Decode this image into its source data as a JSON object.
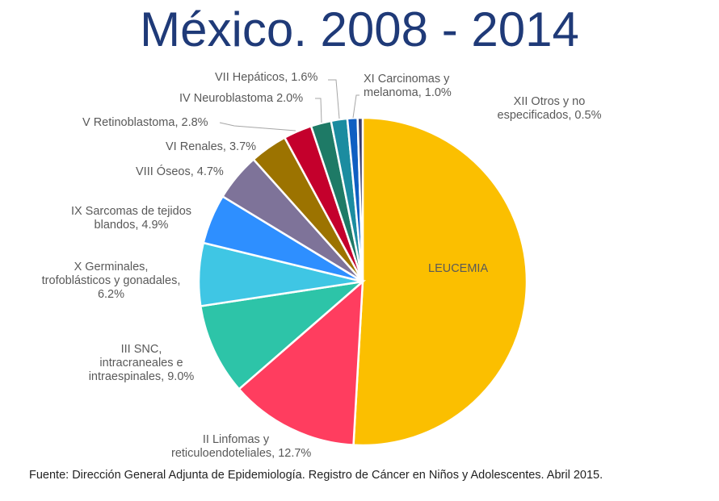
{
  "chart_data": {
    "type": "pie",
    "title": "México. 2008 - 2014",
    "start": "top",
    "direction": "clockwise",
    "slices": [
      {
        "label": "LEUCEMIA",
        "value": 50.9,
        "color": "#FBBF00"
      },
      {
        "label": "II Linfomas y reticuloendoteliales, 12.7%",
        "value": 12.7,
        "color": "#FF3D5F"
      },
      {
        "label": "III SNC, intracraneales e intraespinales, 9.0%",
        "value": 9.0,
        "color": "#2DC4A8"
      },
      {
        "label": "X Germinales, trofoblásticos y gonadales, 6.2%",
        "value": 6.2,
        "color": "#3FC6E4"
      },
      {
        "label": "IX Sarcomas de tejidos blandos, 4.9%",
        "value": 4.9,
        "color": "#2E8FFF"
      },
      {
        "label": "VIII Óseos, 4.7%",
        "value": 4.7,
        "color": "#7E7399"
      },
      {
        "label": "VI Renales, 3.7%",
        "value": 3.7,
        "color": "#9C7300"
      },
      {
        "label": "V Retinoblastoma, 2.8%",
        "value": 2.8,
        "color": "#C4002C"
      },
      {
        "label": "IV Neuroblastoma 2.0%",
        "value": 2.0,
        "color": "#1E7A66"
      },
      {
        "label": "VII Hepáticos, 1.6%",
        "value": 1.6,
        "color": "#1B8CA0"
      },
      {
        "label": "XI Carcinomas y melanoma, 1.0%",
        "value": 1.0,
        "color": "#0F5FC2"
      },
      {
        "label": "XII Otros y no especificados, 0.5%",
        "value": 0.5,
        "color": "#3A3D6A"
      }
    ]
  },
  "labels": {
    "leucemia": "LEUCEMIA",
    "linfomas": [
      "II Linfomas y",
      "reticuloendoteliales, 12.7%"
    ],
    "snc": [
      "III SNC,",
      "intracraneales e",
      "intraespinales, 9.0%"
    ],
    "germinales": [
      "X Germinales,",
      "trofoblásticos y gonadales,",
      "6.2%"
    ],
    "sarcomas": [
      "IX Sarcomas de tejidos",
      "blandos, 4.9%"
    ],
    "oseos": "VIII Óseos, 4.7%",
    "renales": "VI Renales, 3.7%",
    "retino": "V Retinoblastoma, 2.8%",
    "neuro": "IV Neuroblastoma 2.0%",
    "hepaticos": "VII Hepáticos, 1.6%",
    "carcinomas": [
      "XI Carcinomas y",
      "melanoma, 1.0%"
    ],
    "otros": [
      "XII Otros y no",
      "especificados, 0.5%"
    ]
  },
  "source": "Fuente: Dirección General Adjunta de Epidemiología. Registro de Cáncer en Niños y Adolescentes. Abril 2015."
}
